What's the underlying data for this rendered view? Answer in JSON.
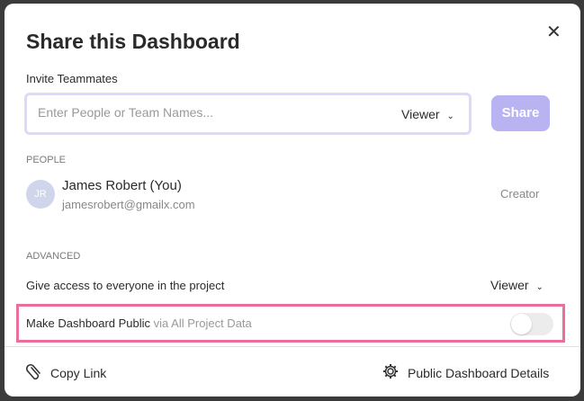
{
  "title": "Share this Dashboard",
  "close_icon": "close-icon",
  "invite": {
    "label": "Invite Teammates",
    "placeholder": "Enter People or Team Names...",
    "value": "",
    "role": "Viewer",
    "share_label": "Share",
    "share_color": "#b9b3f2"
  },
  "people": {
    "heading": "PEOPLE",
    "items": [
      {
        "initials": "JR",
        "name": "James Robert (You)",
        "email": "jamesrobert@gmailx.com",
        "role": "Creator"
      }
    ]
  },
  "advanced": {
    "heading": "ADVANCED",
    "project_access_label": "Give access to everyone in the project",
    "project_access_role": "Viewer",
    "public_label": "Make Dashboard Public",
    "public_sublabel": "via All Project Data",
    "public_enabled": false,
    "highlight_color": "#ea6f9e"
  },
  "footer": {
    "copy_link": "Copy Link",
    "details": "Public Dashboard Details"
  }
}
